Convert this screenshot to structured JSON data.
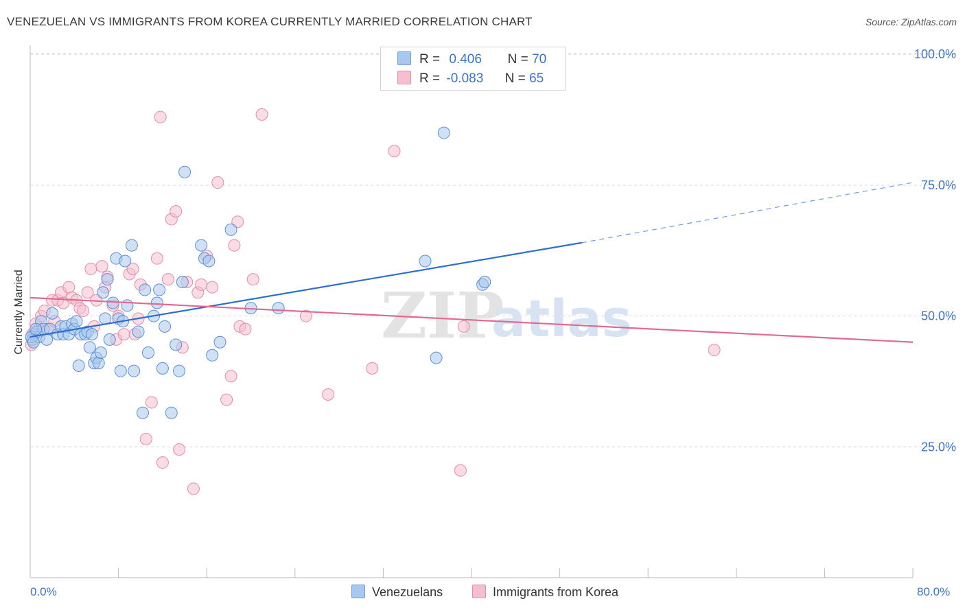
{
  "title": "VENEZUELAN VS IMMIGRANTS FROM KOREA CURRENTLY MARRIED CORRELATION CHART",
  "source": "Source: ZipAtlas.com",
  "watermark": {
    "zip": "ZIP",
    "atlas": "atlas"
  },
  "legend": {
    "rows": [
      {
        "r_label": "R =",
        "r_value": "0.406",
        "n_label": "N =",
        "n_value": "70",
        "color": "#a9c8ef",
        "stroke": "#6d9ad8"
      },
      {
        "r_label": "R =",
        "r_value": "-0.083",
        "n_label": "N =",
        "n_value": "65",
        "color": "#f6bfd0",
        "stroke": "#e88aa8"
      }
    ]
  },
  "bottom_legend": [
    "Venezuelans",
    "Immigrants from Korea"
  ],
  "colors": {
    "blue_fill": "#a9c8ef",
    "blue_stroke": "#5a8fd6",
    "blue_line": "#2f6fcc",
    "pink_fill": "#f6bfd0",
    "pink_stroke": "#e88aa8",
    "pink_line": "#e06a92",
    "accent_text": "#3a74c9",
    "grid": "#d9d9d9"
  },
  "chart_data": {
    "type": "scatter",
    "title": "VENEZUELAN VS IMMIGRANTS FROM KOREA CURRENTLY MARRIED CORRELATION CHART",
    "xlabel": "",
    "ylabel": "Currently Married",
    "xlim": [
      0,
      80
    ],
    "ylim": [
      0,
      105
    ],
    "x_tick_labels": [
      "0.0%",
      "80.0%"
    ],
    "y_ticks": [
      25,
      50,
      75,
      100
    ],
    "y_tick_labels": [
      "25.0%",
      "50.0%",
      "75.0%",
      "100.0%"
    ],
    "grid": true,
    "legend_placement": "top-center",
    "series": [
      {
        "name": "Venezuelans",
        "points": [
          [
            0.2,
            45.5
          ],
          [
            0.4,
            46.5
          ],
          [
            0.6,
            47.0
          ],
          [
            0.8,
            46.0
          ],
          [
            1.0,
            49.0
          ],
          [
            1.2,
            47.5
          ],
          [
            1.5,
            45.5
          ],
          [
            1.8,
            47.5
          ],
          [
            2.0,
            50.5
          ],
          [
            2.5,
            46.5
          ],
          [
            2.8,
            48.0
          ],
          [
            3.0,
            46.5
          ],
          [
            3.2,
            48.0
          ],
          [
            3.5,
            46.5
          ],
          [
            3.8,
            48.5
          ],
          [
            4.0,
            47.5
          ],
          [
            4.2,
            49.0
          ],
          [
            4.4,
            40.5
          ],
          [
            4.6,
            46.5
          ],
          [
            5.0,
            46.5
          ],
          [
            5.2,
            47.0
          ],
          [
            5.4,
            44.0
          ],
          [
            5.6,
            46.5
          ],
          [
            5.8,
            41.0
          ],
          [
            6.0,
            42.0
          ],
          [
            6.2,
            41.0
          ],
          [
            6.4,
            43.0
          ],
          [
            6.6,
            54.5
          ],
          [
            6.8,
            49.5
          ],
          [
            7.0,
            57.0
          ],
          [
            7.2,
            45.5
          ],
          [
            7.5,
            52.5
          ],
          [
            7.8,
            61.0
          ],
          [
            8.0,
            49.5
          ],
          [
            8.2,
            39.5
          ],
          [
            8.4,
            49.0
          ],
          [
            8.6,
            60.5
          ],
          [
            8.8,
            52.0
          ],
          [
            9.2,
            63.5
          ],
          [
            9.4,
            39.5
          ],
          [
            9.8,
            47.0
          ],
          [
            10.2,
            31.5
          ],
          [
            10.4,
            55.0
          ],
          [
            10.7,
            43.0
          ],
          [
            11.2,
            50.0
          ],
          [
            11.5,
            52.5
          ],
          [
            11.7,
            55.0
          ],
          [
            12.0,
            40.0
          ],
          [
            12.2,
            48.0
          ],
          [
            12.8,
            31.5
          ],
          [
            13.2,
            44.5
          ],
          [
            13.5,
            39.5
          ],
          [
            13.8,
            56.5
          ],
          [
            14.0,
            77.5
          ],
          [
            15.5,
            63.5
          ],
          [
            15.8,
            61.0
          ],
          [
            16.2,
            60.5
          ],
          [
            16.5,
            42.5
          ],
          [
            17.2,
            45.0
          ],
          [
            18.2,
            66.5
          ],
          [
            20.0,
            51.5
          ],
          [
            22.5,
            51.5
          ],
          [
            35.8,
            60.5
          ],
          [
            36.8,
            42.0
          ],
          [
            37.5,
            85.0
          ],
          [
            41.0,
            56.0
          ],
          [
            41.2,
            56.5
          ],
          [
            0.1,
            46.0
          ],
          [
            0.3,
            45.0
          ],
          [
            0.5,
            47.5
          ]
        ]
      },
      {
        "name": "Immigrants from Korea",
        "points": [
          [
            0.2,
            46.5
          ],
          [
            0.5,
            48.5
          ],
          [
            0.8,
            47.5
          ],
          [
            1.0,
            50.0
          ],
          [
            1.3,
            51.0
          ],
          [
            1.6,
            47.5
          ],
          [
            2.0,
            53.0
          ],
          [
            2.2,
            49.0
          ],
          [
            2.5,
            53.0
          ],
          [
            2.8,
            54.5
          ],
          [
            3.0,
            52.5
          ],
          [
            3.5,
            55.5
          ],
          [
            3.8,
            53.5
          ],
          [
            4.2,
            53.0
          ],
          [
            4.5,
            51.5
          ],
          [
            4.8,
            51.0
          ],
          [
            5.2,
            54.5
          ],
          [
            5.5,
            59.0
          ],
          [
            5.8,
            48.0
          ],
          [
            6.0,
            53.0
          ],
          [
            6.5,
            59.5
          ],
          [
            6.8,
            55.5
          ],
          [
            7.0,
            57.5
          ],
          [
            7.5,
            52.0
          ],
          [
            7.8,
            45.5
          ],
          [
            8.0,
            50.0
          ],
          [
            8.5,
            46.5
          ],
          [
            9.0,
            58.0
          ],
          [
            9.3,
            59.0
          ],
          [
            9.5,
            46.5
          ],
          [
            9.8,
            49.5
          ],
          [
            10.0,
            56.0
          ],
          [
            10.5,
            26.5
          ],
          [
            11.0,
            33.5
          ],
          [
            11.5,
            61.0
          ],
          [
            11.8,
            88.0
          ],
          [
            12.0,
            22.0
          ],
          [
            12.5,
            57.0
          ],
          [
            12.8,
            68.5
          ],
          [
            13.2,
            70.0
          ],
          [
            13.5,
            24.5
          ],
          [
            13.8,
            44.0
          ],
          [
            14.2,
            56.5
          ],
          [
            14.8,
            17.0
          ],
          [
            15.2,
            54.5
          ],
          [
            15.5,
            56.0
          ],
          [
            16.0,
            61.5
          ],
          [
            16.5,
            55.5
          ],
          [
            17.0,
            75.5
          ],
          [
            17.8,
            34.0
          ],
          [
            18.2,
            38.5
          ],
          [
            18.5,
            63.5
          ],
          [
            18.8,
            68.0
          ],
          [
            19.0,
            48.0
          ],
          [
            19.5,
            47.5
          ],
          [
            20.2,
            57.0
          ],
          [
            21.0,
            88.5
          ],
          [
            25.0,
            50.0
          ],
          [
            27.0,
            35.0
          ],
          [
            31.0,
            40.0
          ],
          [
            33.0,
            81.5
          ],
          [
            39.0,
            20.5
          ],
          [
            39.3,
            48.0
          ],
          [
            62.0,
            43.5
          ],
          [
            0.1,
            44.5
          ]
        ]
      }
    ],
    "trendlines": [
      {
        "series": "Venezuelans",
        "x": [
          0,
          50
        ],
        "y": [
          46.0,
          64.0
        ],
        "dashed_extension_to_x": 80,
        "dashed_end_y": 75.5
      },
      {
        "series": "Immigrants from Korea",
        "x": [
          0,
          80
        ],
        "y": [
          53.5,
          45.0
        ]
      }
    ]
  }
}
